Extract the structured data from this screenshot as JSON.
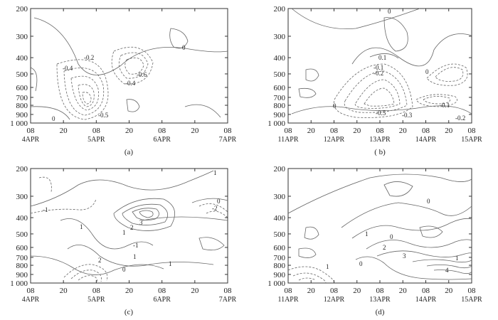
{
  "chart_data": [
    {
      "type": "contour",
      "panel_label": "(a)",
      "y_ticks": [
        "200",
        "300",
        "400",
        "500",
        "600",
        "700",
        "800",
        "900",
        "1 000"
      ],
      "ylim": [
        1000,
        200
      ],
      "y_scale": "pressure (nonlinear)",
      "x_ticks": [
        "08",
        "20",
        "08",
        "20",
        "08",
        "20",
        "08"
      ],
      "x_date_labels": [
        "4APR",
        "5APR",
        "6APR",
        "7APR"
      ],
      "contour_labels": [
        "-0.2",
        "-0.4",
        "-0.6",
        "-0.4",
        "0",
        "0",
        "-0.5"
      ],
      "contour_levels": [
        -0.6,
        -0.5,
        -0.4,
        -0.3,
        -0.2,
        -0.1,
        0
      ],
      "line_styles": {
        "negative": "dashed",
        "zero": "solid"
      }
    },
    {
      "type": "contour",
      "panel_label": "( b)",
      "y_ticks": [
        "200",
        "300",
        "400",
        "500",
        "600",
        "700",
        "800",
        "900",
        "1 000"
      ],
      "ylim": [
        1000,
        200
      ],
      "y_scale": "pressure (nonlinear)",
      "x_ticks": [
        "08",
        "20",
        "08",
        "20",
        "08",
        "20",
        "08",
        "20",
        "08"
      ],
      "x_date_labels": [
        "11APR",
        "12APR",
        "13APR",
        "14APR",
        "15APR"
      ],
      "contour_labels": [
        "0",
        "0.1",
        "-0.1",
        "-0.2",
        "0",
        "0",
        "-0.1",
        "-0.5",
        "-0.3",
        "-0.2"
      ],
      "contour_levels": [
        -0.5,
        -0.4,
        -0.3,
        -0.2,
        -0.1,
        0,
        0.1
      ],
      "line_styles": {
        "negative": "dashed",
        "zero": "solid",
        "positive": "solid"
      }
    },
    {
      "type": "contour",
      "panel_label": "(c)",
      "y_ticks": [
        "200",
        "300",
        "400",
        "500",
        "600",
        "700",
        "800",
        "900",
        "1 000"
      ],
      "ylim": [
        1000,
        200
      ],
      "y_scale": "pressure (nonlinear)",
      "x_ticks": [
        "08",
        "20",
        "08",
        "20",
        "08",
        "20",
        "08"
      ],
      "x_date_labels": [
        "4APR",
        "5APR",
        "6APR",
        "7APR"
      ],
      "contour_labels": [
        "1",
        "-1",
        "0",
        "-2",
        "3",
        "2",
        "1",
        "1",
        "1",
        "2",
        "0",
        "1",
        "-1"
      ],
      "contour_levels": [
        -2,
        -1,
        0,
        1,
        2,
        3
      ],
      "line_styles": {
        "negative": "dashed",
        "zero": "solid",
        "positive": "solid"
      }
    },
    {
      "type": "contour",
      "panel_label": "(d)",
      "y_ticks": [
        "200",
        "300",
        "400",
        "500",
        "600",
        "700",
        "800",
        "900",
        "1 000"
      ],
      "ylim": [
        1000,
        200
      ],
      "y_scale": "pressure (nonlinear)",
      "x_ticks": [
        "08",
        "20",
        "08",
        "20",
        "08",
        "20",
        "08",
        "20",
        "08"
      ],
      "x_date_labels": [
        "11APR",
        "12APR",
        "13APR",
        "14APR",
        "15APR"
      ],
      "contour_labels": [
        "0",
        "1",
        "0",
        "2",
        "3",
        "0",
        "1",
        "4",
        "1"
      ],
      "contour_levels": [
        -1,
        0,
        1,
        2,
        3,
        4
      ],
      "line_styles": {
        "negative": "dashed",
        "zero": "solid",
        "positive": "solid"
      }
    }
  ]
}
